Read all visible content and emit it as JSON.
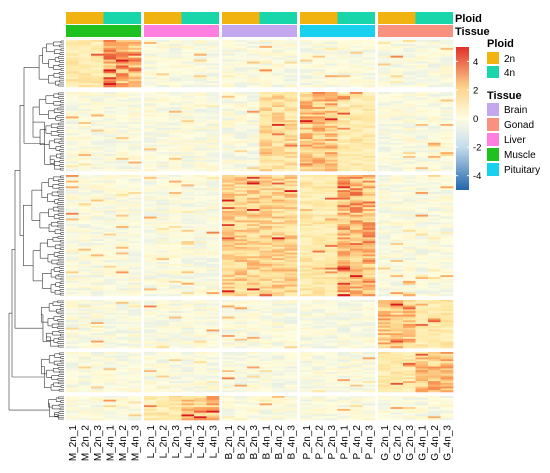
{
  "chart_data": {
    "type": "heatmap",
    "column_groups": [
      {
        "tissue": "Muscle",
        "columns": [
          "M_2n_1",
          "M_2n_2",
          "M_2n_3",
          "M_4n_1",
          "M_4n_2",
          "M_4n_3"
        ]
      },
      {
        "tissue": "Liver",
        "columns": [
          "L_2n_1",
          "L_2n_2",
          "L_2n_3",
          "L_4n_1",
          "L_4n_2",
          "L_4n_3"
        ]
      },
      {
        "tissue": "Brain",
        "columns": [
          "B_2n_1",
          "B_2n_2",
          "B_2n_3",
          "B_4n_1",
          "B_4n_2",
          "B_4n_3"
        ]
      },
      {
        "tissue": "Pituitary",
        "columns": [
          "P_2n_1",
          "P_2n_2",
          "P_2n_3",
          "P_4n_1",
          "P_4n_2",
          "P_4n_3"
        ]
      },
      {
        "tissue": "Gonad",
        "columns": [
          "G_2n_1",
          "G_2n_2",
          "G_2n_3",
          "G_4n_1",
          "G_4n_2",
          "G_4n_3"
        ]
      }
    ],
    "annotation_tracks": [
      "Ploid",
      "Tissue"
    ],
    "row_clusters": [
      {
        "cluster": 1,
        "high_in": "M_4n",
        "approx_zscore": 4
      },
      {
        "cluster": 2,
        "high_in": "P_2n",
        "approx_zscore": 3
      },
      {
        "cluster": 3,
        "high_in": "P_4n",
        "approx_zscore": 3.5
      },
      {
        "cluster": 4,
        "high_in": "G_2n",
        "approx_zscore": 3
      },
      {
        "cluster": 5,
        "high_in": "G_4n",
        "approx_zscore": 3
      },
      {
        "cluster": 6,
        "high_in": "L_4n",
        "approx_zscore": 3
      }
    ],
    "color_scale": {
      "min": -5,
      "max": 5,
      "ticks": [
        "4",
        "2",
        "0",
        "-2",
        "-4"
      ],
      "stops": [
        "#2166ac",
        "#f7f7f7",
        "#fffccc",
        "#fdae61",
        "#d7191c"
      ]
    },
    "legend": {
      "ploid": {
        "title": "Ploid",
        "items": [
          {
            "label": "2n",
            "color": "#f0b30f"
          },
          {
            "label": "4n",
            "color": "#18d6aa"
          }
        ]
      },
      "tissue": {
        "title": "Tissue",
        "items": [
          {
            "label": "Brain",
            "color": "#c3a7ef"
          },
          {
            "label": "Gonad",
            "color": "#f9917f"
          },
          {
            "label": "Liver",
            "color": "#ff7fe0"
          },
          {
            "label": "Muscle",
            "color": "#1fc11f"
          },
          {
            "label": "Pituitary",
            "color": "#1ad0ef"
          }
        ]
      },
      "placement": "right"
    },
    "title": "",
    "xlabel": "",
    "ylabel": ""
  }
}
